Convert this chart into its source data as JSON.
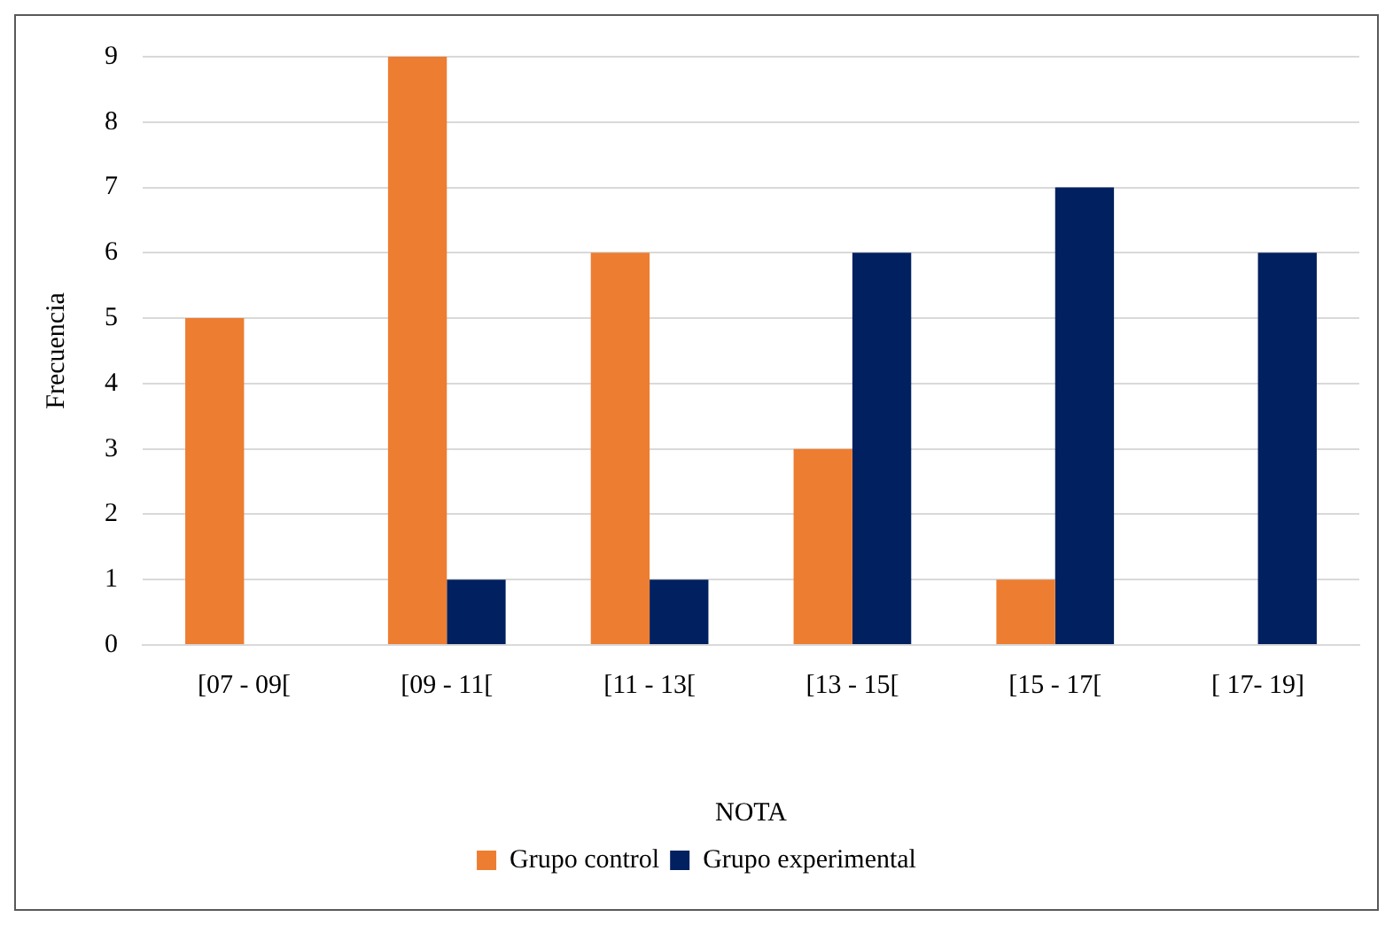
{
  "chart_data": {
    "type": "bar",
    "xlabel": "NOTA",
    "ylabel": "Frecuencia",
    "categories": [
      "[07 - 09[",
      "[09 - 11[",
      "[11 - 13[",
      "[13 - 15[",
      "[15 - 17[",
      "[ 17- 19]"
    ],
    "series": [
      {
        "name": "Grupo control",
        "color": "#ed7d31",
        "values": [
          5,
          9,
          6,
          3,
          1,
          0
        ]
      },
      {
        "name": "Grupo experimental",
        "color": "#002060",
        "values": [
          0,
          1,
          1,
          6,
          7,
          6
        ]
      }
    ],
    "ylim": [
      0,
      9
    ],
    "yticks": [
      0,
      1,
      2,
      3,
      4,
      5,
      6,
      7,
      8,
      9
    ],
    "grid": "y",
    "legend": "bottom"
  }
}
